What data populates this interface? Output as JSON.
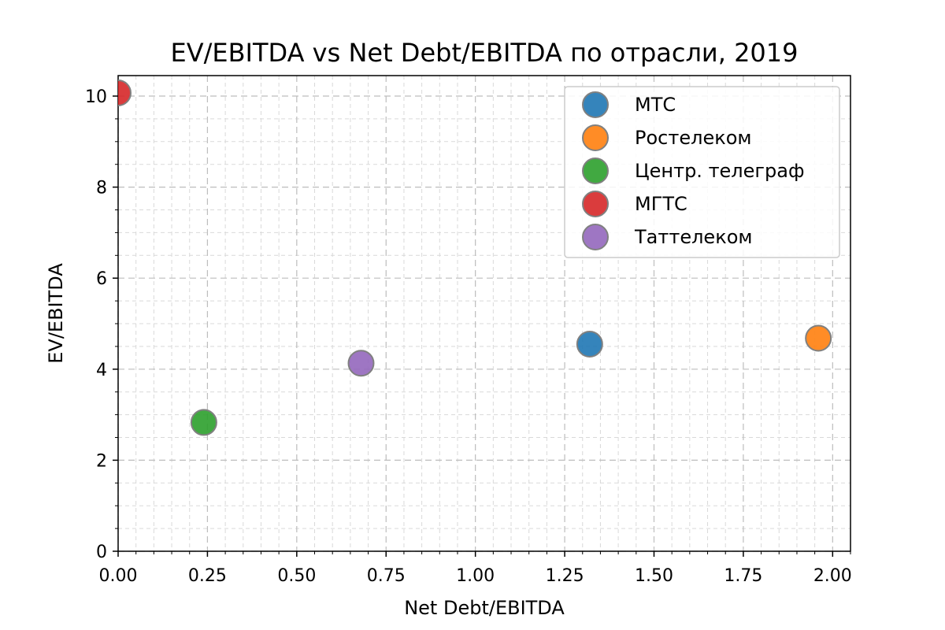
{
  "chart_data": {
    "type": "scatter",
    "title": "EV/EBITDA vs Net Debt/EBITDA по отрасли, 2019",
    "xlabel": "Net Debt/EBITDA",
    "ylabel": "EV/EBITDA",
    "xlim": [
      0.0,
      2.05
    ],
    "ylim": [
      0,
      10.45
    ],
    "x_ticks": [
      "0.00",
      "0.25",
      "0.50",
      "0.75",
      "1.00",
      "1.25",
      "1.50",
      "1.75",
      "2.00"
    ],
    "y_ticks": [
      "0",
      "2",
      "4",
      "6",
      "8",
      "10"
    ],
    "grid": true,
    "legend_position": "top-right",
    "series": [
      {
        "name": "МТС",
        "color": "#1f77b4",
        "x": [
          1.32
        ],
        "y": [
          4.55
        ]
      },
      {
        "name": "Ростелеком",
        "color": "#ff7f0e",
        "x": [
          1.96
        ],
        "y": [
          4.68
        ]
      },
      {
        "name": "Центр. телеграф",
        "color": "#2ca02c",
        "x": [
          0.24
        ],
        "y": [
          2.83
        ]
      },
      {
        "name": "МГТС",
        "color": "#d62728",
        "x": [
          0.0
        ],
        "y": [
          10.07
        ]
      },
      {
        "name": "Таттелеком",
        "color": "#9467bd",
        "x": [
          0.68
        ],
        "y": [
          4.13
        ]
      }
    ]
  }
}
